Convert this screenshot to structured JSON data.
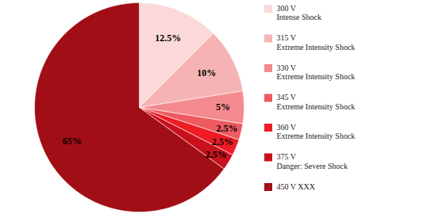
{
  "chart_data": {
    "type": "pie",
    "categories": [
      "300 V\nIntense Shock",
      "315 V\nExtreme Intensity Shock",
      "330 V\nExtreme Intensity Shock",
      "345 V\nExtreme Intensity Shock",
      "360 V\nExtreme Intensity Shock",
      "375 V\nDanger: Severe Shock",
      "450 V XXX"
    ],
    "values": [
      12.5,
      10,
      5,
      2.5,
      2.5,
      2.5,
      65
    ],
    "value_labels": [
      "12.5%",
      "10%",
      "5%",
      "2.5%",
      "2.5%",
      "2.5%",
      "65%"
    ],
    "colors": [
      "#fbd9da",
      "#f6b3b5",
      "#f38a8f",
      "#ee5a60",
      "#ee1c25",
      "#c8111c",
      "#a20e16"
    ],
    "data_labels": true,
    "legend": "right"
  }
}
